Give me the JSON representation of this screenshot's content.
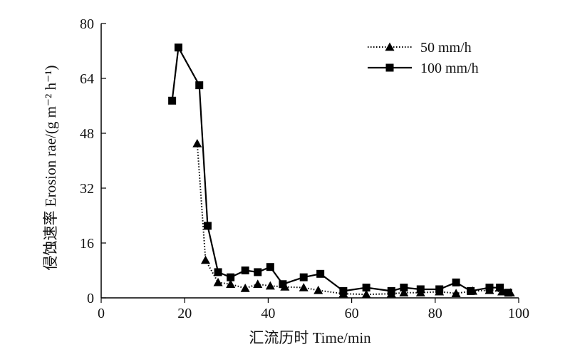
{
  "chart_data": {
    "type": "line",
    "xlabel": "汇流历时 Time/min",
    "ylabel": "侵蚀速率 Erosion rae/(g m⁻² h⁻¹)",
    "xlim": [
      0,
      100
    ],
    "ylim": [
      0,
      80
    ],
    "xticks": [
      "0",
      "20",
      "40",
      "60",
      "80",
      "100"
    ],
    "yticks": [
      "0",
      "16",
      "32",
      "48",
      "64",
      "80"
    ],
    "grid": false,
    "legend": "top-right",
    "series": [
      {
        "name": "50 mm/h",
        "marker": "triangle",
        "line": "dotted",
        "color": "#000000",
        "x": [
          23,
          25,
          28,
          31,
          34.5,
          37.5,
          40.5,
          44,
          48.5,
          52,
          58,
          63.5,
          69.5,
          72.5,
          76.5,
          81,
          85,
          89,
          93,
          96,
          98
        ],
        "y": [
          45,
          11,
          4.5,
          4,
          2.8,
          4,
          3.5,
          3.2,
          3.0,
          2.2,
          1.2,
          1.0,
          1.2,
          1.5,
          1.5,
          1.8,
          1.3,
          2.0,
          2.2,
          1.8,
          1.5
        ]
      },
      {
        "name": "100 mm/h",
        "marker": "square",
        "line": "solid",
        "color": "#000000",
        "x": [
          17,
          18.5,
          23.5,
          25.5,
          28,
          31,
          34.5,
          37.5,
          40.5,
          43.5,
          48.5,
          52.5,
          58,
          63.5,
          69.5,
          72.5,
          76.5,
          81,
          85,
          88.5,
          93,
          95.5,
          97.5
        ],
        "y": [
          57.5,
          73,
          62,
          21,
          7.5,
          6,
          8,
          7.5,
          9,
          4,
          6,
          7,
          2,
          3,
          2,
          3,
          2.5,
          2.5,
          4.5,
          2,
          3,
          3,
          1.5
        ]
      }
    ]
  }
}
